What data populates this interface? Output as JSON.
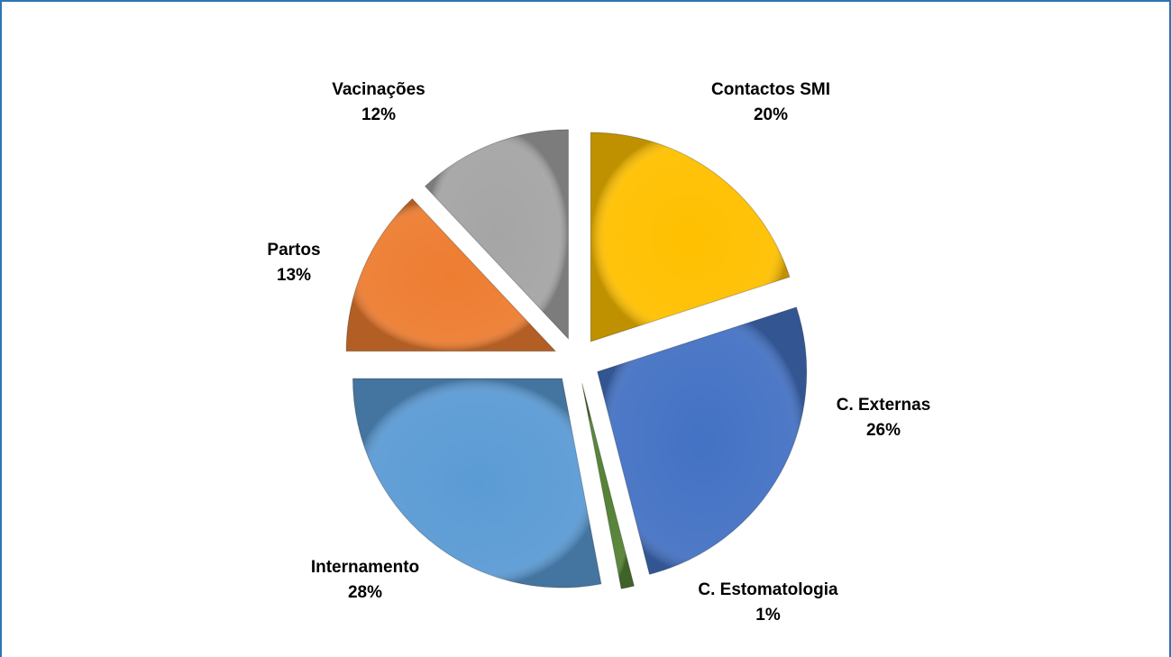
{
  "chart_data": {
    "type": "pie",
    "categories": [
      "Contactos SMI",
      "C. Externas",
      "C. Estomatologia",
      "Internamento",
      "Partos",
      "Vacinações"
    ],
    "values": [
      20,
      26,
      1,
      28,
      13,
      12
    ],
    "value_labels": [
      "20%",
      "26%",
      "1%",
      "28%",
      "13%",
      "12%"
    ],
    "colors": [
      "#ffc000",
      "#4472c4",
      "#548235",
      "#5b9bd5",
      "#ed7d31",
      "#a5a5a5"
    ]
  }
}
